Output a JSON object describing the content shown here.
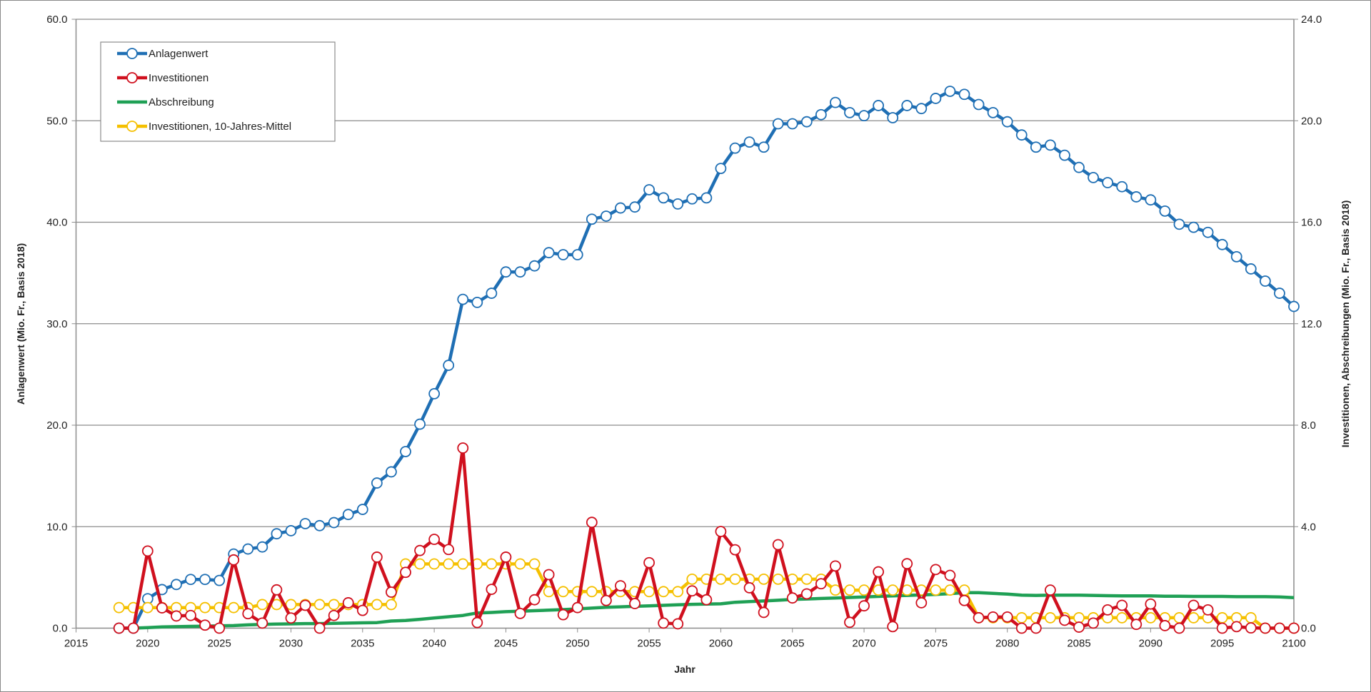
{
  "chart_data": {
    "type": "line",
    "xlabel": "Jahr",
    "ylabel_left": "Anlagenwert (Mio. Fr., Basis 2018)",
    "ylabel_right": "Investitionen, Abschreibungen (Mio. Fr., Basis 2018)",
    "xlim": [
      2015,
      2100
    ],
    "xticks": [
      "2015",
      "2020",
      "2025",
      "2030",
      "2035",
      "2040",
      "2045",
      "2050",
      "2055",
      "2060",
      "2065",
      "2070",
      "2075",
      "2080",
      "2085",
      "2090",
      "2095",
      "2100"
    ],
    "ylim_left": [
      0,
      60
    ],
    "yticks_left": [
      "0.0",
      "10.0",
      "20.0",
      "30.0",
      "40.0",
      "50.0",
      "60.0"
    ],
    "ylim_right": [
      0,
      24
    ],
    "yticks_right": [
      "0.0",
      "4.0",
      "8.0",
      "12.0",
      "16.0",
      "20.0",
      "24.0"
    ],
    "grid": true,
    "legend_position": "top-left",
    "x_start": 2018,
    "series": [
      {
        "name": "Anlagenwert",
        "axis": "left",
        "color": "#1f6fb4",
        "markers": true,
        "values": [
          0,
          0,
          2.9,
          3.8,
          4.3,
          4.8,
          4.8,
          4.7,
          7.3,
          7.8,
          8.0,
          9.3,
          9.6,
          10.3,
          10.1,
          10.4,
          11.2,
          11.7,
          14.3,
          15.4,
          17.4,
          20.1,
          23.1,
          25.9,
          32.4,
          32.1,
          33.0,
          35.1,
          35.1,
          35.7,
          37.0,
          36.8,
          36.8,
          40.3,
          40.6,
          41.4,
          41.5,
          43.2,
          42.4,
          41.8,
          42.3,
          42.4,
          45.3,
          47.3,
          47.9,
          47.4,
          49.7,
          49.7,
          49.9,
          50.6,
          51.8,
          50.8,
          50.5,
          51.5,
          50.3,
          51.5,
          51.2,
          52.2,
          52.9,
          52.6,
          51.6,
          50.8,
          49.9,
          48.6,
          47.4,
          47.6,
          46.6,
          45.4,
          44.4,
          43.9,
          43.5,
          42.5,
          42.2,
          41.1,
          39.8,
          39.5,
          39.0,
          37.8,
          36.6,
          35.4,
          34.2,
          33.0,
          31.7
        ]
      },
      {
        "name": "Investitionen",
        "axis": "right",
        "color": "#d0101e",
        "markers": true,
        "values": [
          0,
          0,
          3.04,
          0.8,
          0.48,
          0.5,
          0.12,
          0,
          2.69,
          0.57,
          0.2,
          1.51,
          0.4,
          0.9,
          0,
          0.5,
          1.0,
          0.7,
          2.8,
          1.42,
          2.2,
          3.06,
          3.5,
          3.1,
          7.1,
          0.22,
          1.53,
          2.8,
          0.58,
          1.12,
          2.11,
          0.53,
          0.81,
          4.17,
          1.09,
          1.67,
          0.97,
          2.58,
          0.2,
          0.17,
          1.47,
          1.12,
          3.81,
          3.09,
          1.59,
          0.62,
          3.29,
          1.19,
          1.35,
          1.75,
          2.45,
          0.23,
          0.88,
          2.22,
          0.06,
          2.54,
          1.0,
          2.31,
          2.08,
          1.09,
          0.41,
          0.44,
          0.44,
          0,
          0,
          1.5,
          0.31,
          0.04,
          0.2,
          0.72,
          0.9,
          0.15,
          0.95,
          0.1,
          0,
          0.9,
          0.72,
          0,
          0.06,
          0.01,
          0,
          0,
          0
        ]
      },
      {
        "name": "Abschreibung",
        "axis": "right",
        "color": "#1fa055",
        "markers": false,
        "values": [
          null,
          0,
          0.02,
          0.05,
          0.06,
          0.07,
          0.08,
          0.09,
          0.1,
          0.13,
          0.15,
          0.16,
          0.17,
          0.18,
          0.18,
          0.19,
          0.2,
          0.21,
          0.22,
          0.28,
          0.3,
          0.35,
          0.4,
          0.45,
          0.5,
          0.6,
          0.62,
          0.65,
          0.67,
          0.69,
          0.71,
          0.73,
          0.76,
          0.79,
          0.82,
          0.84,
          0.86,
          0.88,
          0.9,
          0.92,
          0.94,
          0.95,
          0.96,
          1.02,
          1.05,
          1.07,
          1.1,
          1.13,
          1.15,
          1.17,
          1.19,
          1.21,
          1.23,
          1.25,
          1.27,
          1.29,
          1.31,
          1.33,
          1.36,
          1.4,
          1.4,
          1.37,
          1.34,
          1.3,
          1.29,
          1.3,
          1.3,
          1.3,
          1.29,
          1.28,
          1.27,
          1.27,
          1.27,
          1.26,
          1.26,
          1.25,
          1.25,
          1.25,
          1.24,
          1.24,
          1.24,
          1.23,
          1.2
        ]
      },
      {
        "name": "Investitionen, 10-Jahres-Mittel",
        "axis": "right",
        "color": "#f5c000",
        "markers": true,
        "values": [
          0.81,
          0.81,
          0.81,
          0.81,
          0.81,
          0.81,
          0.81,
          0.81,
          0.81,
          0.81,
          0.93,
          0.93,
          0.93,
          0.93,
          0.93,
          0.93,
          0.93,
          0.93,
          0.93,
          0.93,
          2.53,
          2.53,
          2.53,
          2.53,
          2.53,
          2.53,
          2.53,
          2.53,
          2.53,
          2.53,
          1.44,
          1.44,
          1.44,
          1.44,
          1.44,
          1.44,
          1.44,
          1.44,
          1.44,
          1.44,
          1.93,
          1.93,
          1.93,
          1.93,
          1.93,
          1.93,
          1.93,
          1.93,
          1.93,
          1.93,
          1.5,
          1.5,
          1.5,
          1.5,
          1.5,
          1.5,
          1.5,
          1.5,
          1.5,
          1.5,
          0.41,
          0.41,
          0.41,
          0.41,
          0.41,
          0.41,
          0.41,
          0.41,
          0.41,
          0.41,
          0.41,
          0.41,
          0.41,
          0.41,
          0.41,
          0.41,
          0.41,
          0.41,
          0.41,
          0.41,
          0,
          0,
          0
        ]
      }
    ]
  }
}
